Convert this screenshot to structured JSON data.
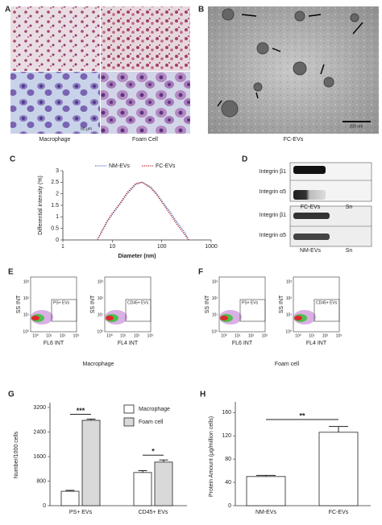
{
  "panel_labels": [
    "A",
    "B",
    "C",
    "D",
    "E",
    "F",
    "G",
    "H"
  ],
  "panel_a": {
    "labels": [
      "Macrophage",
      "Foam Cell"
    ],
    "scale_bar": "50 μm"
  },
  "panel_b": {
    "label": "FC-EVs",
    "scale_bar": "200 nm"
  },
  "panel_d": {
    "blots": [
      {
        "rows": [
          "Integrin β1",
          "Integrin α5"
        ],
        "lanes": [
          "FC-EVs",
          "Sn"
        ]
      },
      {
        "rows": [
          "Integrin β1",
          "Integrin α5"
        ],
        "lanes": [
          "NM-EVs",
          "Sn"
        ]
      }
    ]
  },
  "flow": {
    "ticks": [
      "10⁰",
      "10¹",
      "10²",
      "10³"
    ],
    "y_label": "SS INT",
    "panels": [
      {
        "caption": "Macrophage",
        "plots": [
          {
            "x_label": "FL6 INT",
            "gate": "PS+ EVs"
          },
          {
            "x_label": "FL4 INT",
            "gate": "CD45+ EVs"
          }
        ]
      },
      {
        "caption": "Foam cell",
        "plots": [
          {
            "x_label": "FL6 INT",
            "gate": "PS+ EVs"
          },
          {
            "x_label": "FL4 INT",
            "gate": "CD45+ EVs"
          }
        ]
      }
    ]
  },
  "chart_data": [
    {
      "type": "line",
      "x_label": "Diameter (nm)",
      "y_label": "Differential intensity (%)",
      "log_x": true,
      "legend": "top",
      "x": [
        5,
        6,
        8,
        10,
        15,
        20,
        30,
        40,
        60,
        80,
        100,
        150,
        200,
        300,
        350
      ],
      "series": [
        {
          "name": "NM-EVs",
          "color": "#5b7fc7",
          "values": [
            0,
            0.3,
            0.8,
            1.1,
            1.6,
            2.0,
            2.4,
            2.5,
            2.3,
            2.0,
            1.7,
            1.2,
            0.8,
            0.3,
            0
          ]
        },
        {
          "name": "FC-EVs",
          "color": "#b5333a",
          "values": [
            0,
            0.35,
            0.85,
            1.15,
            1.65,
            2.05,
            2.45,
            2.5,
            2.25,
            1.95,
            1.65,
            1.1,
            0.7,
            0.2,
            0
          ]
        }
      ],
      "xlim": [
        1,
        1000
      ],
      "xticks": [
        1,
        10,
        100,
        1000
      ],
      "ylim": [
        0,
        3
      ],
      "yticks": [
        0,
        0.5,
        1,
        1.5,
        2,
        2.5,
        3
      ]
    },
    {
      "type": "bar",
      "y_label": "Number/1000 cells",
      "legend": "top-right",
      "categories": [
        "PS+ EVs",
        "CD45+ EVs"
      ],
      "series": [
        {
          "name": "Macrophage",
          "color": "#ffffff",
          "values": [
            470,
            1080
          ],
          "errors": [
            30,
            60
          ]
        },
        {
          "name": "Foam cell",
          "color": "#d9d9d9",
          "values": [
            2780,
            1420
          ],
          "errors": [
            40,
            70
          ]
        }
      ],
      "annotations": [
        "***",
        "*"
      ],
      "ylim": [
        0,
        3200
      ],
      "yticks": [
        0,
        800,
        1600,
        2400,
        3200
      ]
    },
    {
      "type": "bar",
      "y_label": "Protein Amount  (μg/million cells)",
      "categories": [
        "NM-EVs",
        "FC-EVs"
      ],
      "values": [
        50,
        126
      ],
      "errors": [
        2,
        10
      ],
      "color": "#ffffff",
      "annotations": [
        "**"
      ],
      "ylim": [
        0,
        170
      ],
      "yticks": [
        0,
        40,
        80,
        120,
        160
      ]
    }
  ]
}
